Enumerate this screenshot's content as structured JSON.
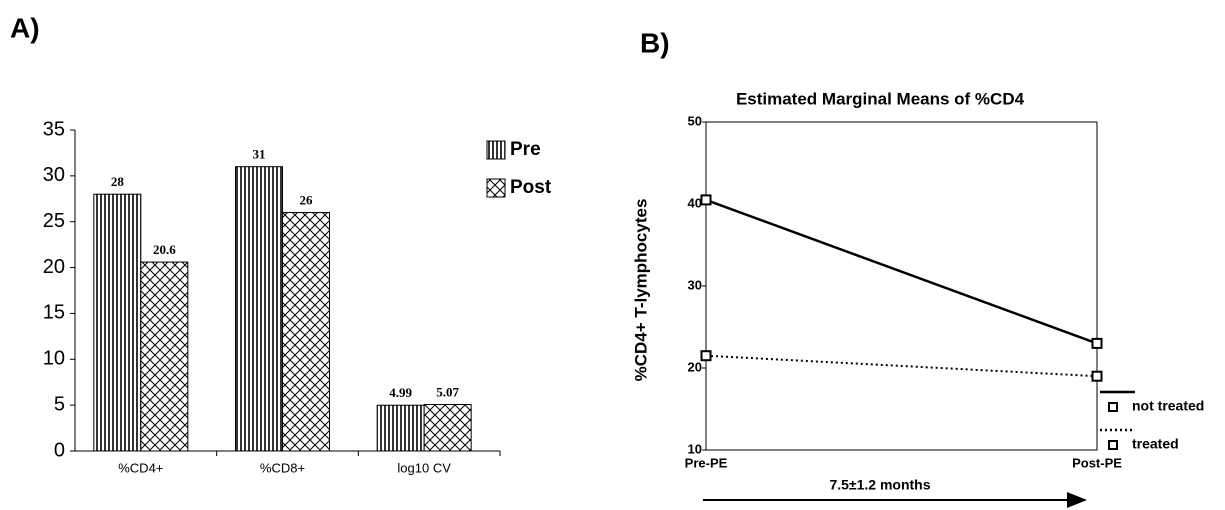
{
  "chart_data": [
    {
      "type": "bar",
      "panel_label": "A)",
      "categories": [
        "%CD4+",
        "%CD8+",
        "log10 CV"
      ],
      "series": [
        {
          "name": "Pre",
          "color": "#000000",
          "pattern": "vertical-stripes",
          "values": [
            28,
            31,
            4.99
          ]
        },
        {
          "name": "Post",
          "color": "#000000",
          "pattern": "crosshatch",
          "values": [
            20.6,
            26,
            5.07
          ]
        }
      ],
      "ylim": [
        0,
        35
      ],
      "yticks": [
        0,
        5,
        10,
        15,
        20,
        25,
        30,
        35
      ],
      "legend": "upper-right"
    },
    {
      "type": "line",
      "panel_label": "B)",
      "title": "Estimated Marginal Means of %CD4",
      "y_label": "%CD4+ T-lymphocytes",
      "categories": [
        "Pre-PE",
        "Post-PE"
      ],
      "series": [
        {
          "name": "not treated",
          "color": "#000000",
          "style": "solid",
          "values": [
            40.5,
            23
          ]
        },
        {
          "name": "treated",
          "color": "#000000",
          "style": "dotted",
          "values": [
            21.5,
            19
          ]
        }
      ],
      "ylim": [
        10,
        50
      ],
      "yticks": [
        10,
        20,
        30,
        40,
        50
      ],
      "annotation": "7.5±1.2 months",
      "legend": "lower-right"
    }
  ]
}
